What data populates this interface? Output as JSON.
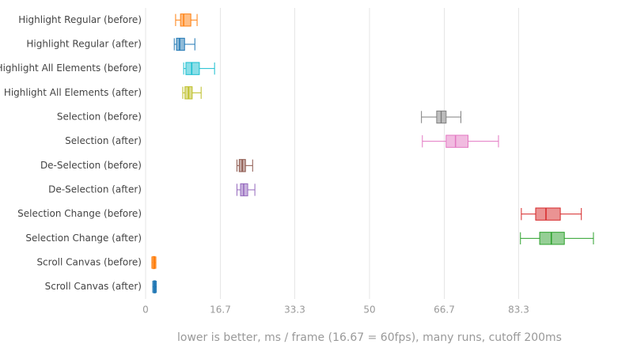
{
  "chart_data": {
    "type": "box",
    "x_label": "lower is better, ms / frame (16.67 = 60fps), many runs, cutoff 200ms",
    "xlim": [
      0,
      100
    ],
    "xticks": [
      0,
      16.7,
      33.3,
      50,
      66.7,
      83.3
    ],
    "grid": true,
    "series": [
      {
        "name": "Highlight Regular (before)",
        "color": "#ff7f0e",
        "min": 6.7,
        "q1": 7.8,
        "median": 8.5,
        "q3": 10.1,
        "max": 11.5
      },
      {
        "name": "Highlight Regular (after)",
        "color": "#1f77b4",
        "min": 6.4,
        "q1": 6.9,
        "median": 7.6,
        "q3": 8.7,
        "max": 11.0
      },
      {
        "name": "Highlight All Elements (before)",
        "color": "#17becf",
        "min": 8.5,
        "q1": 9.0,
        "median": 10.3,
        "q3": 12.0,
        "max": 15.4
      },
      {
        "name": "Highlight All Elements (after)",
        "color": "#bcbd22",
        "min": 8.3,
        "q1": 8.8,
        "median": 9.6,
        "q3": 10.4,
        "max": 12.4
      },
      {
        "name": "Selection (before)",
        "color": "#7f7f7f",
        "min": 61.6,
        "q1": 65.0,
        "median": 66.0,
        "q3": 67.1,
        "max": 70.4
      },
      {
        "name": "Selection (after)",
        "color": "#e377c2",
        "min": 61.8,
        "q1": 67.1,
        "median": 69.2,
        "q3": 72.0,
        "max": 78.8
      },
      {
        "name": "De-Selection (before)",
        "color": "#8c564b",
        "min": 20.4,
        "q1": 20.9,
        "median": 21.6,
        "q3": 22.3,
        "max": 23.9
      },
      {
        "name": "De-Selection (after)",
        "color": "#9467bd",
        "min": 20.4,
        "q1": 21.2,
        "median": 21.9,
        "q3": 22.8,
        "max": 24.4
      },
      {
        "name": "Selection Change (before)",
        "color": "#d62728",
        "min": 83.9,
        "q1": 87.1,
        "median": 89.4,
        "q3": 92.6,
        "max": 97.3
      },
      {
        "name": "Selection Change (after)",
        "color": "#2ca02c",
        "min": 83.7,
        "q1": 88.0,
        "median": 90.6,
        "q3": 93.5,
        "max": 100
      },
      {
        "name": "Scroll Canvas (before)",
        "color": "#ff7f0e",
        "min": 1.4,
        "q1": 1.6,
        "median": 1.9,
        "q3": 2.1,
        "max": 2.3
      },
      {
        "name": "Scroll Canvas (after)",
        "color": "#1f77b4",
        "min": 1.6,
        "q1": 1.8,
        "median": 2.0,
        "q3": 2.2,
        "max": 2.4
      }
    ]
  }
}
